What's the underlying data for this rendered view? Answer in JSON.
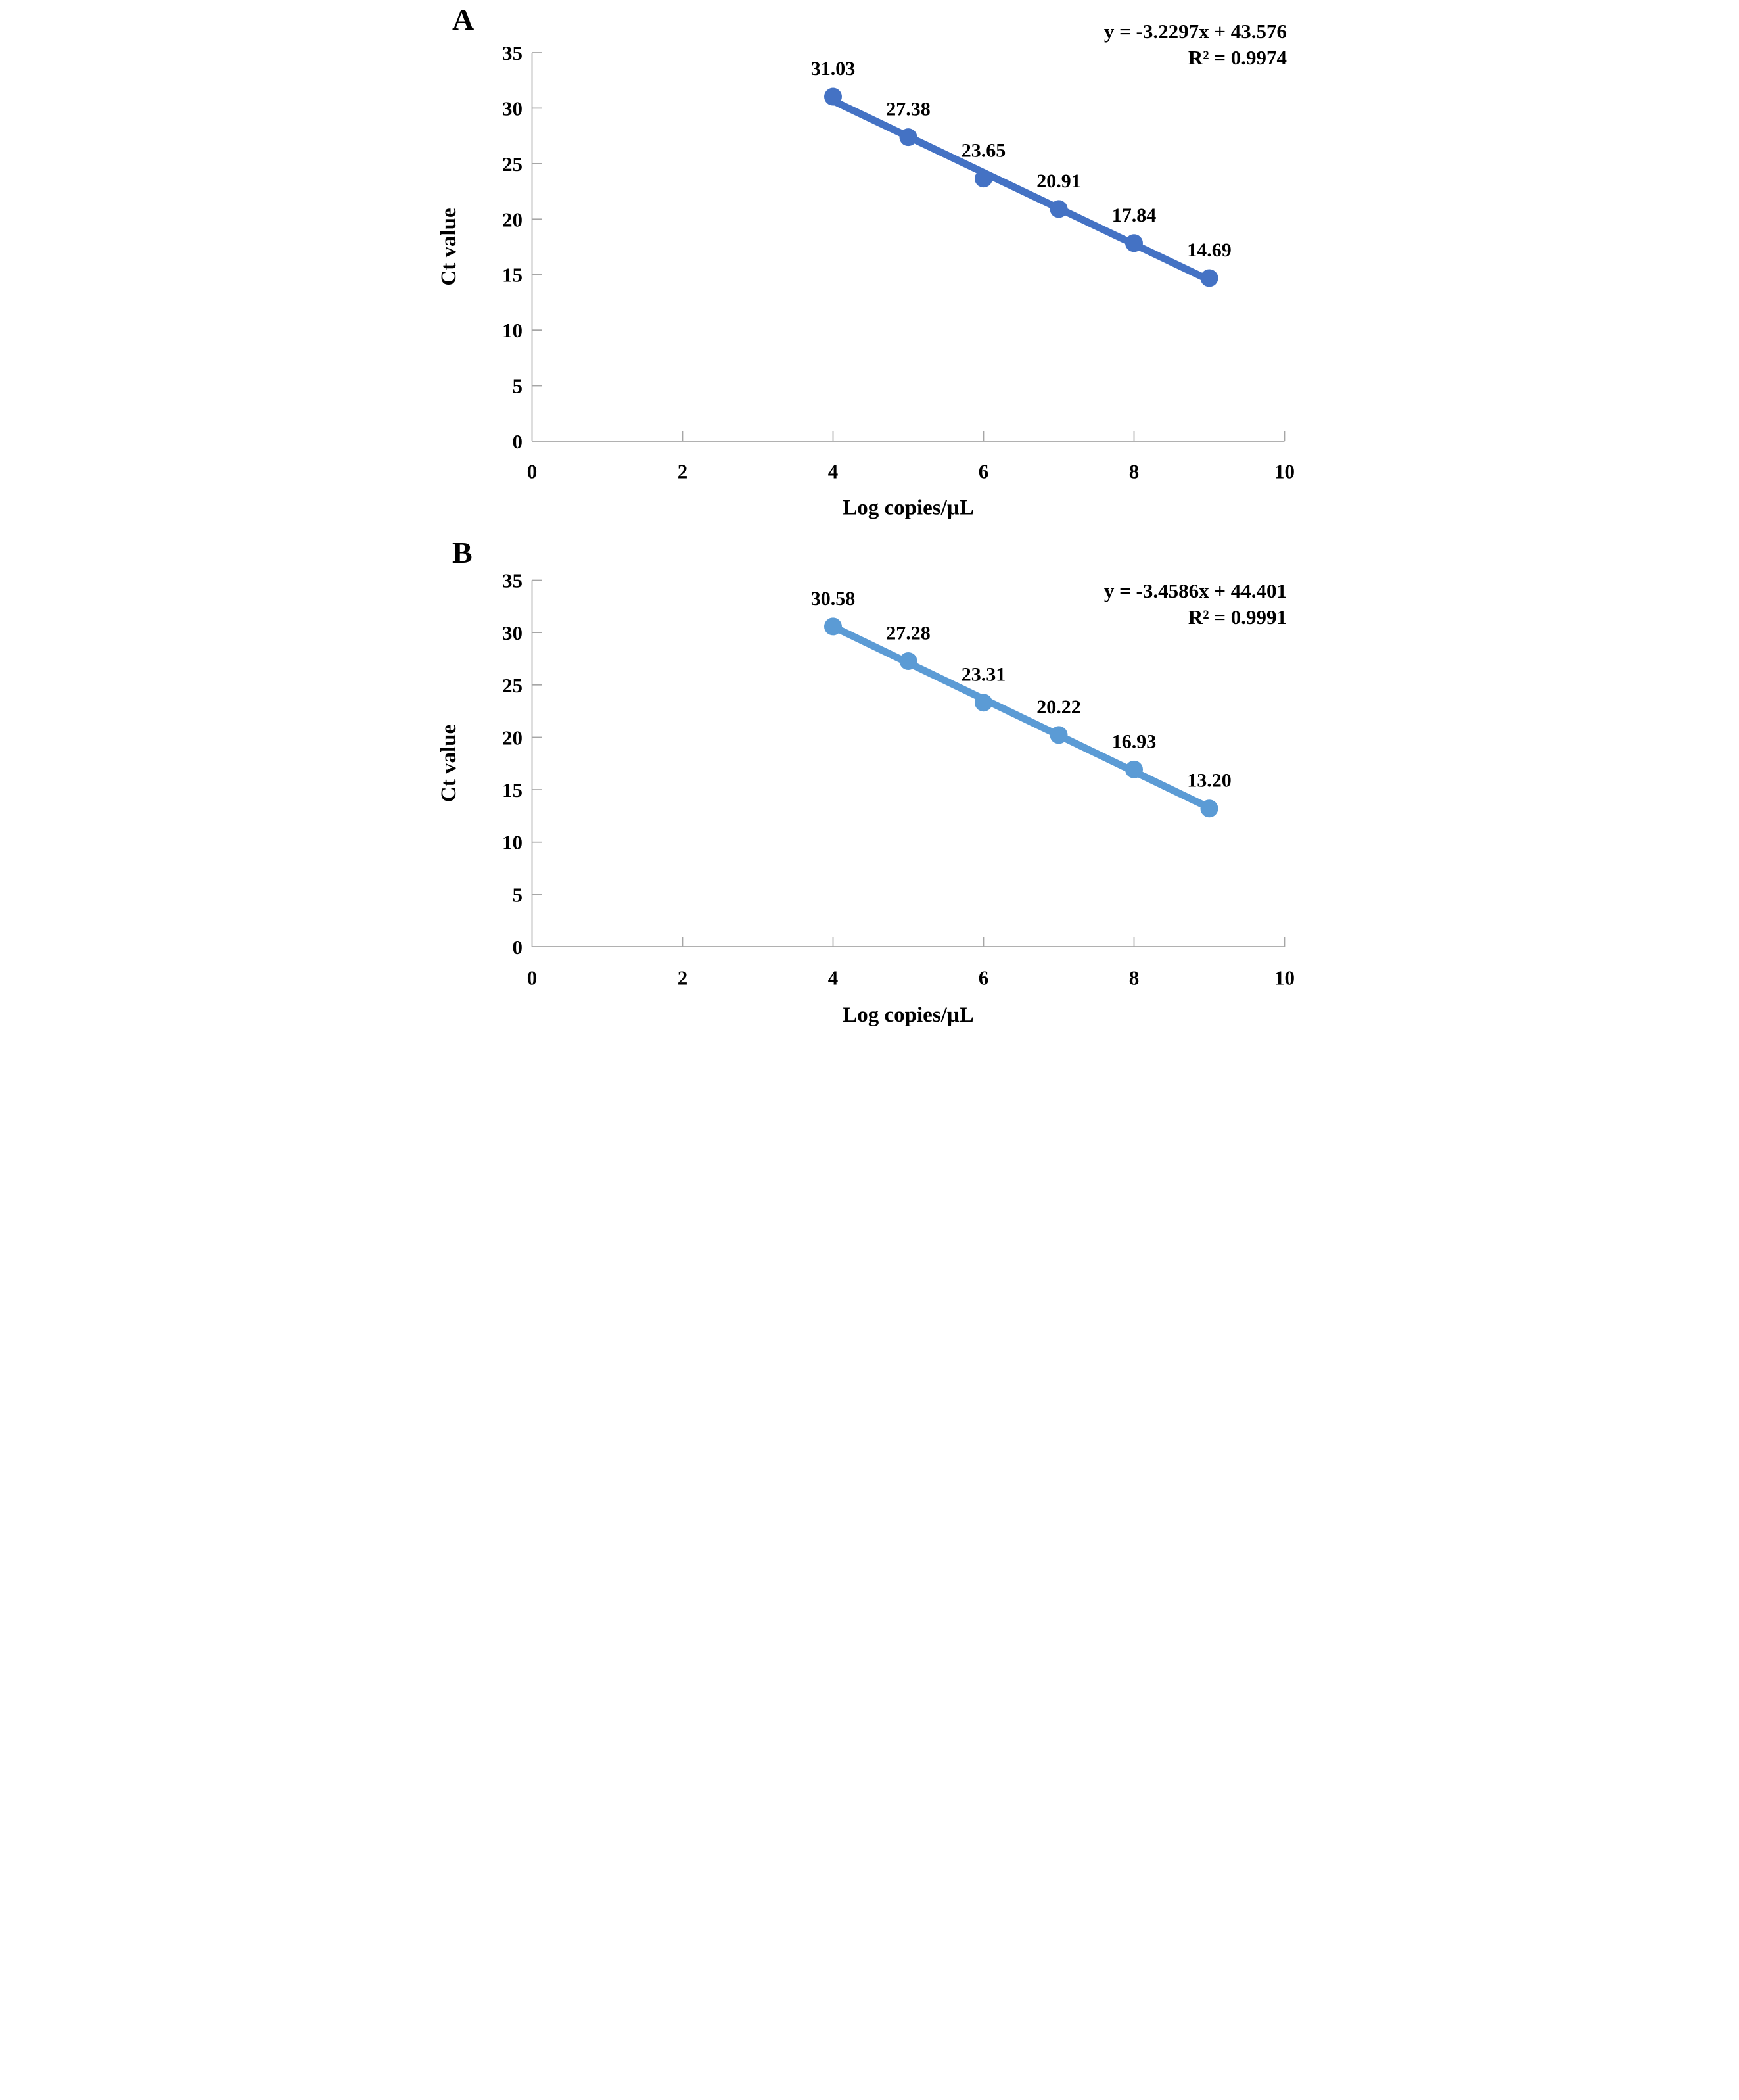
{
  "figure": {
    "background": "#ffffff",
    "axis_color": "#A6A6A6",
    "text_color": "#000000"
  },
  "chart_data": [
    {
      "type": "scatter",
      "panel_label": "A",
      "equation": "y = -3.2297x + 43.576",
      "r_squared": "R² = 0.9974",
      "series_color": "#4472C4",
      "xlabel": "Log copies/µL",
      "ylabel": "Ct value",
      "xlim": [
        0,
        10
      ],
      "ylim": [
        0,
        35
      ],
      "x_tick_labels": [
        "0",
        "2",
        "4",
        "6",
        "8",
        "10"
      ],
      "y_tick_labels": [
        "0",
        "5",
        "10",
        "15",
        "20",
        "25",
        "30",
        "35"
      ],
      "x": [
        4,
        5,
        6,
        7,
        8,
        9
      ],
      "y": [
        31.03,
        27.38,
        23.65,
        20.91,
        17.84,
        14.69
      ],
      "point_labels": [
        "31.03",
        "27.38",
        "23.65",
        "20.91",
        "17.84",
        "14.69"
      ],
      "trendline": {
        "slope": -3.2297,
        "intercept": 43.576
      },
      "grid": false,
      "legend": "none"
    },
    {
      "type": "scatter",
      "panel_label": "B",
      "equation": "y = -3.4586x + 44.401",
      "r_squared": "R² = 0.9991",
      "series_color": "#5B9BD5",
      "xlabel": "Log copies/µL",
      "ylabel": "Ct value",
      "xlim": [
        0,
        10
      ],
      "ylim": [
        0,
        35
      ],
      "x_tick_labels": [
        "0",
        "2",
        "4",
        "6",
        "8",
        "10"
      ],
      "y_tick_labels": [
        "0",
        "5",
        "10",
        "15",
        "20",
        "25",
        "30",
        "35"
      ],
      "x": [
        4,
        5,
        6,
        7,
        8,
        9
      ],
      "y": [
        30.58,
        27.28,
        23.31,
        20.22,
        16.93,
        13.2
      ],
      "point_labels": [
        "30.58",
        "27.28",
        "23.31",
        "20.22",
        "16.93",
        "13.20"
      ],
      "trendline": {
        "slope": -3.4586,
        "intercept": 44.401
      },
      "grid": false,
      "legend": "none"
    }
  ]
}
